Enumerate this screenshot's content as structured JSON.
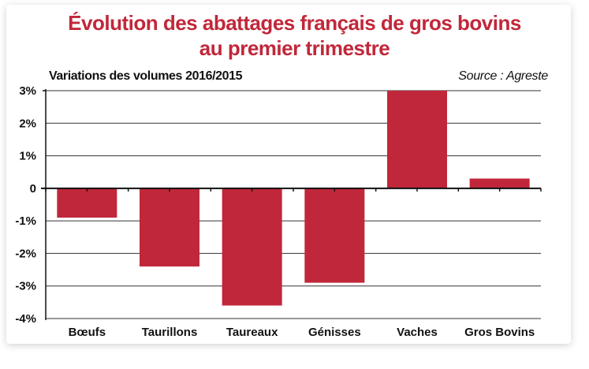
{
  "header": {
    "title_line1": "Évolution des abattages français de gros bovins",
    "title_line2": "au premier trimestre",
    "subtitle": "Variations des volumes 2016/2015",
    "source": "Source : Agreste"
  },
  "colors": {
    "title": "#c1273a",
    "bar": "#c1273a",
    "grid": "#333333"
  },
  "chart_data": {
    "type": "bar",
    "title": "Évolution des abattages français de gros bovins au premier trimestre",
    "subtitle": "Variations des volumes 2016/2015",
    "source": "Source : Agreste",
    "categories": [
      "Bœufs",
      "Taurillons",
      "Taureaux",
      "Génisses",
      "Vaches",
      "Gros Bovins"
    ],
    "values": [
      -0.9,
      -2.4,
      -3.6,
      -2.9,
      3.0,
      0.3
    ],
    "unit": "%",
    "ylim": [
      -4,
      3
    ],
    "yticks": [
      3,
      2,
      1,
      0,
      -1,
      -2,
      -3,
      -4
    ],
    "ytick_labels": [
      "3%",
      "2%",
      "1%",
      "0",
      "-1%",
      "-2%",
      "-3%",
      "-4%"
    ],
    "grid": true,
    "legend": "none"
  }
}
